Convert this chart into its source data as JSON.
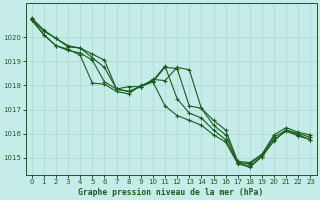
{
  "bg_color": "#c5ece8",
  "grid_color": "#b0ddd8",
  "line_color": "#1a5c1a",
  "marker_color": "#1a5c1a",
  "xlabel": "Graphe pression niveau de la mer (hPa)",
  "xlabel_color": "#1a5c1a",
  "tick_color": "#1a5c1a",
  "xlim": [
    -0.5,
    23.5
  ],
  "ylim": [
    1014.3,
    1021.4
  ],
  "yticks": [
    1015,
    1016,
    1017,
    1018,
    1019,
    1020
  ],
  "xticks": [
    0,
    1,
    2,
    3,
    4,
    5,
    6,
    7,
    8,
    9,
    10,
    11,
    12,
    13,
    14,
    15,
    16,
    17,
    18,
    19,
    20,
    21,
    22,
    23
  ],
  "series": [
    [
      1020.8,
      1020.3,
      1019.95,
      1019.65,
      1019.55,
      1019.3,
      1019.05,
      1017.85,
      1017.75,
      1017.95,
      1018.25,
      1018.2,
      1018.75,
      1018.65,
      1017.05,
      1016.55,
      1016.15,
      1014.85,
      1014.8,
      1015.15,
      1015.95,
      1016.25,
      1016.05,
      1015.95
    ],
    [
      1020.75,
      1020.25,
      1019.95,
      1019.6,
      1019.55,
      1019.15,
      1018.75,
      1017.85,
      1017.75,
      1017.95,
      1018.15,
      1018.75,
      1018.7,
      1017.15,
      1017.05,
      1016.35,
      1015.95,
      1014.8,
      1014.75,
      1015.1,
      1015.85,
      1016.15,
      1016.0,
      1015.85
    ],
    [
      1020.75,
      1020.1,
      1019.65,
      1019.45,
      1019.35,
      1019.05,
      1018.15,
      1017.85,
      1017.95,
      1017.95,
      1018.2,
      1018.8,
      1017.45,
      1016.85,
      1016.65,
      1016.15,
      1015.75,
      1014.8,
      1014.65,
      1015.05,
      1015.7,
      1016.15,
      1015.95,
      1015.75
    ],
    [
      1020.7,
      1020.1,
      1019.65,
      1019.5,
      1019.25,
      1018.1,
      1018.05,
      1017.75,
      1017.65,
      1018.0,
      1018.15,
      1017.15,
      1016.75,
      1016.55,
      1016.35,
      1015.95,
      1015.65,
      1014.75,
      1014.6,
      1015.05,
      1015.75,
      1016.1,
      1015.9,
      1015.75
    ]
  ]
}
